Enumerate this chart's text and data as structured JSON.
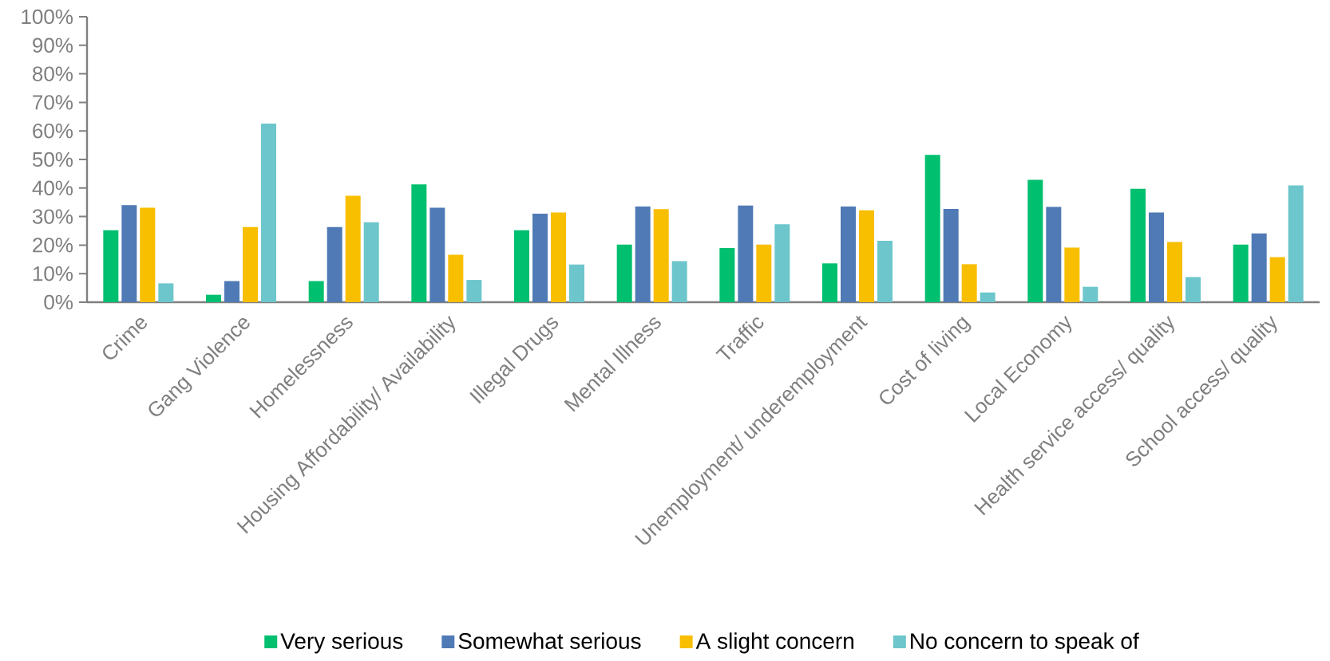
{
  "chart_data": {
    "type": "bar",
    "categories": [
      "Crime",
      "Gang Violence",
      "Homelessness",
      "Housing Affordability/ Availability",
      "Illegal Drugs",
      "Mental Illness",
      "Traffic",
      "Unemployment/ underemployment",
      "Cost of living",
      "Local Economy",
      "Health service access/ quality",
      "School access/ quality"
    ],
    "series": [
      {
        "name": "Very serious",
        "color": "#00bf6f",
        "values": [
          25.2,
          2.6,
          7.4,
          41.3,
          25.2,
          20.2,
          19.0,
          13.6,
          51.6,
          42.9,
          39.7,
          20.2
        ]
      },
      {
        "name": "Somewhat serious",
        "color": "#4f7ab5",
        "values": [
          34.0,
          7.4,
          26.3,
          33.1,
          31.0,
          33.5,
          33.9,
          33.5,
          32.7,
          33.4,
          31.4,
          24.1
        ]
      },
      {
        "name": "A slight concern",
        "color": "#f8be00",
        "values": [
          33.1,
          26.3,
          37.3,
          16.6,
          31.4,
          32.6,
          20.2,
          32.2,
          13.3,
          19.1,
          21.1,
          15.8
        ]
      },
      {
        "name": "No concern to speak of",
        "color": "#6cc6cb",
        "values": [
          6.6,
          62.6,
          28.0,
          7.8,
          13.2,
          14.4,
          27.3,
          21.5,
          3.4,
          5.4,
          8.8,
          40.9
        ]
      }
    ],
    "ylim": [
      0,
      100
    ],
    "yticks": [
      {
        "value": 0,
        "label": "0%"
      },
      {
        "value": 10,
        "label": "10%"
      },
      {
        "value": 20,
        "label": "20%"
      },
      {
        "value": 30,
        "label": "30%"
      },
      {
        "value": 40,
        "label": "40%"
      },
      {
        "value": 50,
        "label": "50%"
      },
      {
        "value": 60,
        "label": "60%"
      },
      {
        "value": 70,
        "label": "70%"
      },
      {
        "value": 80,
        "label": "80%"
      },
      {
        "value": 90,
        "label": "90%"
      },
      {
        "value": 100,
        "label": "100%"
      }
    ],
    "legend": "bottom"
  }
}
